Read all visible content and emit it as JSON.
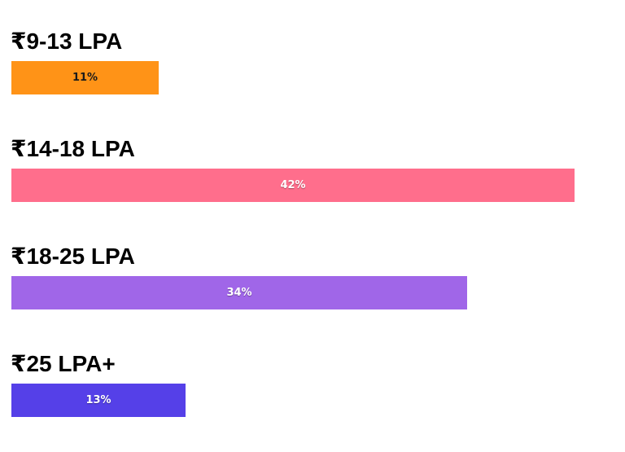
{
  "chart_data": {
    "type": "bar",
    "orientation": "horizontal",
    "categories": [
      "₹9-13 LPA",
      "₹14-18 LPA",
      "₹18-25 LPA",
      "₹25 LPA+"
    ],
    "values": [
      11,
      42,
      34,
      13
    ],
    "value_labels": [
      "11%",
      "42%",
      "34%",
      "13%"
    ],
    "unit": "%",
    "colors": [
      "#FF9317",
      "#FF6E8C",
      "#A066E8",
      "#5540E8"
    ],
    "title": "",
    "xlabel": "",
    "ylabel": "",
    "grid": false,
    "legend": "none"
  }
}
